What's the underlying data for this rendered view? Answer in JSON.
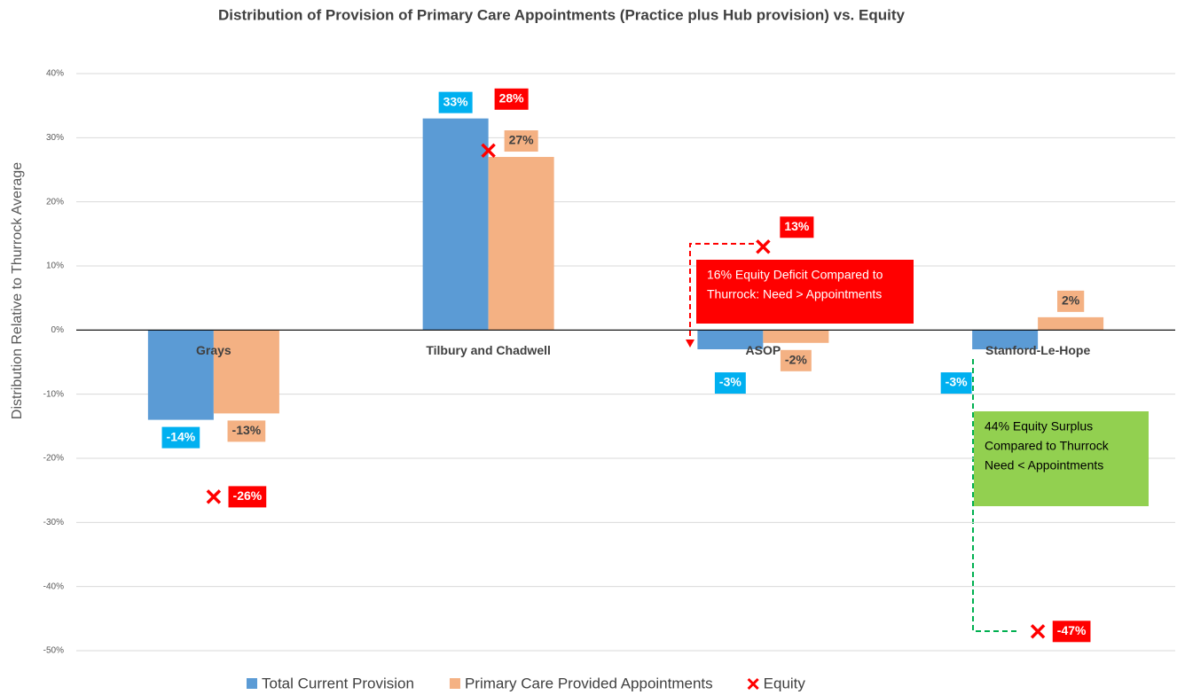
{
  "chart_data": {
    "type": "bar",
    "title": "Distribution of Provision of Primary Care Appointments (Practice plus Hub provision) vs. Equity",
    "y_label": "Distribution Relative to Thurrock Average",
    "categories": [
      "Grays",
      "Tilbury and Chadwell",
      "ASOP",
      "Stanford-Le-Hope"
    ],
    "series": [
      {
        "name": "Total Current Provision",
        "color": "#5b9bd5",
        "values": [
          -14,
          33,
          -3,
          -3
        ],
        "value_labels": [
          "-14%",
          "33%",
          "-3%",
          "-3%"
        ]
      },
      {
        "name": "Primary Care Provided Appointments",
        "color": "#f4b183",
        "values": [
          -13,
          27,
          -2,
          2
        ],
        "value_labels": [
          "-13%",
          "27%",
          "-2%",
          "2%"
        ]
      },
      {
        "name": "Equity",
        "type": "scatter",
        "marker": "x",
        "color": "#ff0000",
        "values": [
          -26,
          28,
          13,
          -47
        ],
        "value_labels": [
          "-26%",
          "28%",
          "13%",
          "-47%"
        ]
      }
    ],
    "ylim": [
      -50,
      40
    ],
    "yticks": [
      {
        "value": 40,
        "label": "40%"
      },
      {
        "value": 30,
        "label": "30%"
      },
      {
        "value": 20,
        "label": "20%"
      },
      {
        "value": 10,
        "label": "10%"
      },
      {
        "value": 0,
        "label": "0%"
      },
      {
        "value": -10,
        "label": "-10%"
      },
      {
        "value": -20,
        "label": "-20%"
      },
      {
        "value": -30,
        "label": "-30%"
      },
      {
        "value": -40,
        "label": "-40%"
      },
      {
        "value": -50,
        "label": "-50%"
      }
    ],
    "grid": true,
    "legend": "bottom",
    "annotations": [
      {
        "text": "16% Equity Deficit Compared to Thurrock: Need > Appointments",
        "lines": [
          "16% Equity Deficit Compared to",
          "Thurrock: Need > Appointments"
        ],
        "color": "#ff0000"
      },
      {
        "text": "44% Equity Surplus Compared to Thurrock Need < Appointments",
        "lines": [
          "44% Equity Surplus",
          "Compared to Thurrock",
          "Need < Appointments"
        ],
        "color": "#92d050"
      }
    ]
  }
}
